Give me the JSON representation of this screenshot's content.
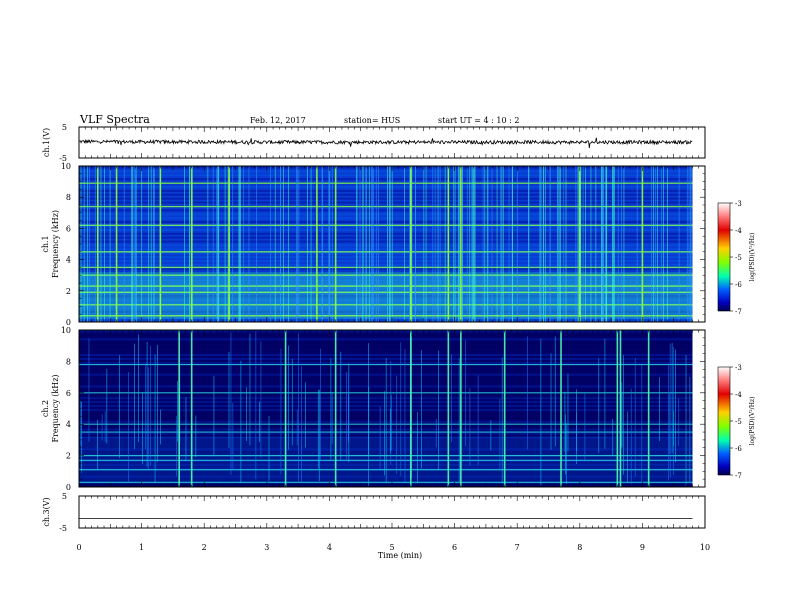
{
  "header": {
    "title": "VLF Spectra",
    "date": "Feb. 12, 2017",
    "station": "station= HUS",
    "start": "start  UT  =   4 : 10 : 2"
  },
  "chart_data": [
    {
      "type": "line",
      "panel": "ch1-waveform",
      "ylabel": "ch.1(V)",
      "ylim": [
        -5,
        5
      ],
      "yticks": [
        "5",
        "-5"
      ],
      "x": [
        0,
        1,
        2,
        3,
        4,
        5,
        6,
        7,
        8,
        9,
        9.8
      ],
      "series": [
        {
          "values": [
            0.3,
            0.2,
            0.2,
            0.1,
            0.1,
            0.1,
            0.1,
            0.1,
            0.1,
            0.1,
            0.1
          ]
        }
      ],
      "color": "#000000"
    },
    {
      "type": "heatmap",
      "panel": "ch1-spectrogram",
      "ylabel": "ch.1\nFrequency  (kHz)",
      "ylim": [
        0,
        10
      ],
      "yticks": [
        "0",
        "2",
        "4",
        "6",
        "8",
        "10"
      ],
      "xlim": [
        0,
        9.8
      ],
      "band_lines_khz": [
        0.4,
        1.1,
        1.9,
        2.3,
        3.0,
        3.5,
        4.5,
        6.2,
        7.4,
        8.9
      ],
      "bright_times_min": [
        0.3,
        0.6,
        1.3,
        1.8,
        2.4,
        3.8,
        4.1,
        5.3,
        5.9,
        6.1,
        8.0,
        9.0
      ],
      "colorbar": {
        "label": "log(PSD)(V²/Hz)",
        "ticks": [
          "-3",
          "-4",
          "-5",
          "-6",
          "-7"
        ],
        "range": [
          -7,
          -3
        ]
      }
    },
    {
      "type": "heatmap",
      "panel": "ch2-spectrogram",
      "ylabel": "ch.2\nFrequency  (kHz)",
      "ylim": [
        0,
        10
      ],
      "yticks": [
        "0",
        "2",
        "4",
        "6",
        "8",
        "10"
      ],
      "xlim": [
        0,
        9.8
      ],
      "band_lines_khz": [
        0.3,
        1.1,
        1.7,
        2.0,
        3.5,
        4.0,
        6.0,
        7.8
      ],
      "bright_times_min": [
        1.6,
        1.8,
        3.3,
        4.1,
        5.3,
        5.9,
        6.1,
        6.8,
        7.7,
        8.6,
        8.65,
        9.1
      ],
      "colorbar": {
        "label": "log(PSD)(V²/Hz)",
        "ticks": [
          "-3",
          "-4",
          "-5",
          "-6",
          "-7"
        ],
        "range": [
          -7,
          -3
        ]
      }
    },
    {
      "type": "line",
      "panel": "ch3-waveform",
      "ylabel": "ch.3(V)",
      "ylim": [
        -5,
        5
      ],
      "yticks": [
        "5",
        "-5"
      ],
      "x": [
        0,
        9.8
      ],
      "series": [
        {
          "values": [
            -2.0,
            -2.0
          ]
        }
      ],
      "color": "#000000",
      "xlabel": "Time  (min)",
      "xticks": [
        "0",
        "1",
        "2",
        "3",
        "4",
        "5",
        "6",
        "7",
        "8",
        "9",
        "10"
      ],
      "xlim": [
        0,
        10
      ]
    }
  ]
}
